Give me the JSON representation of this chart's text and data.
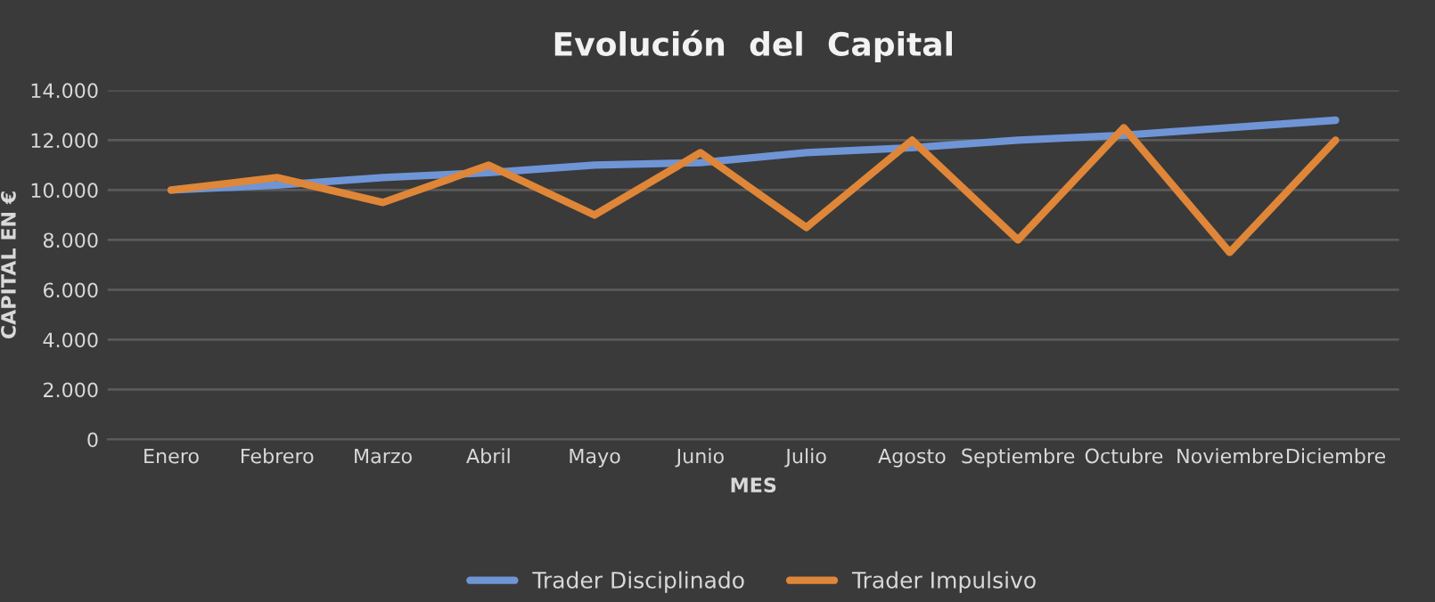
{
  "chart_data": {
    "type": "line",
    "title": "Evolución  del  Capital",
    "xlabel": "MES",
    "ylabel": "CAPITAL EN €",
    "categories": [
      "Enero",
      "Febrero",
      "Marzo",
      "Abril",
      "Mayo",
      "Junio",
      "Julio",
      "Agosto",
      "Septiembre",
      "Octubre",
      "Noviembre",
      "Diciembre"
    ],
    "series": [
      {
        "name": "Trader Disciplinado",
        "color": "#6f95d6",
        "values": [
          10000,
          10200,
          10500,
          10700,
          11000,
          11100,
          11500,
          11700,
          12000,
          12200,
          12500,
          12800
        ]
      },
      {
        "name": "Trader Impulsivo",
        "color": "#df8638",
        "values": [
          10000,
          10500,
          9500,
          11000,
          9000,
          11500,
          8500,
          12000,
          8000,
          12500,
          7500,
          12000
        ]
      }
    ],
    "ylim": [
      0,
      14000
    ],
    "yticks": [
      0,
      {
        "value": 2000,
        "label": "2.000"
      },
      {
        "value": 4000,
        "label": "4.000"
      },
      {
        "value": 6000,
        "label": "6.000"
      },
      {
        "value": 8000,
        "label": "8.000"
      },
      {
        "value": 10000,
        "label": "10.000"
      },
      {
        "value": 12000,
        "label": "12.000"
      },
      {
        "value": 14000,
        "label": "14.000"
      }
    ],
    "grid": "y",
    "legend": "bottom",
    "marker": "none",
    "line_style": "solid"
  }
}
